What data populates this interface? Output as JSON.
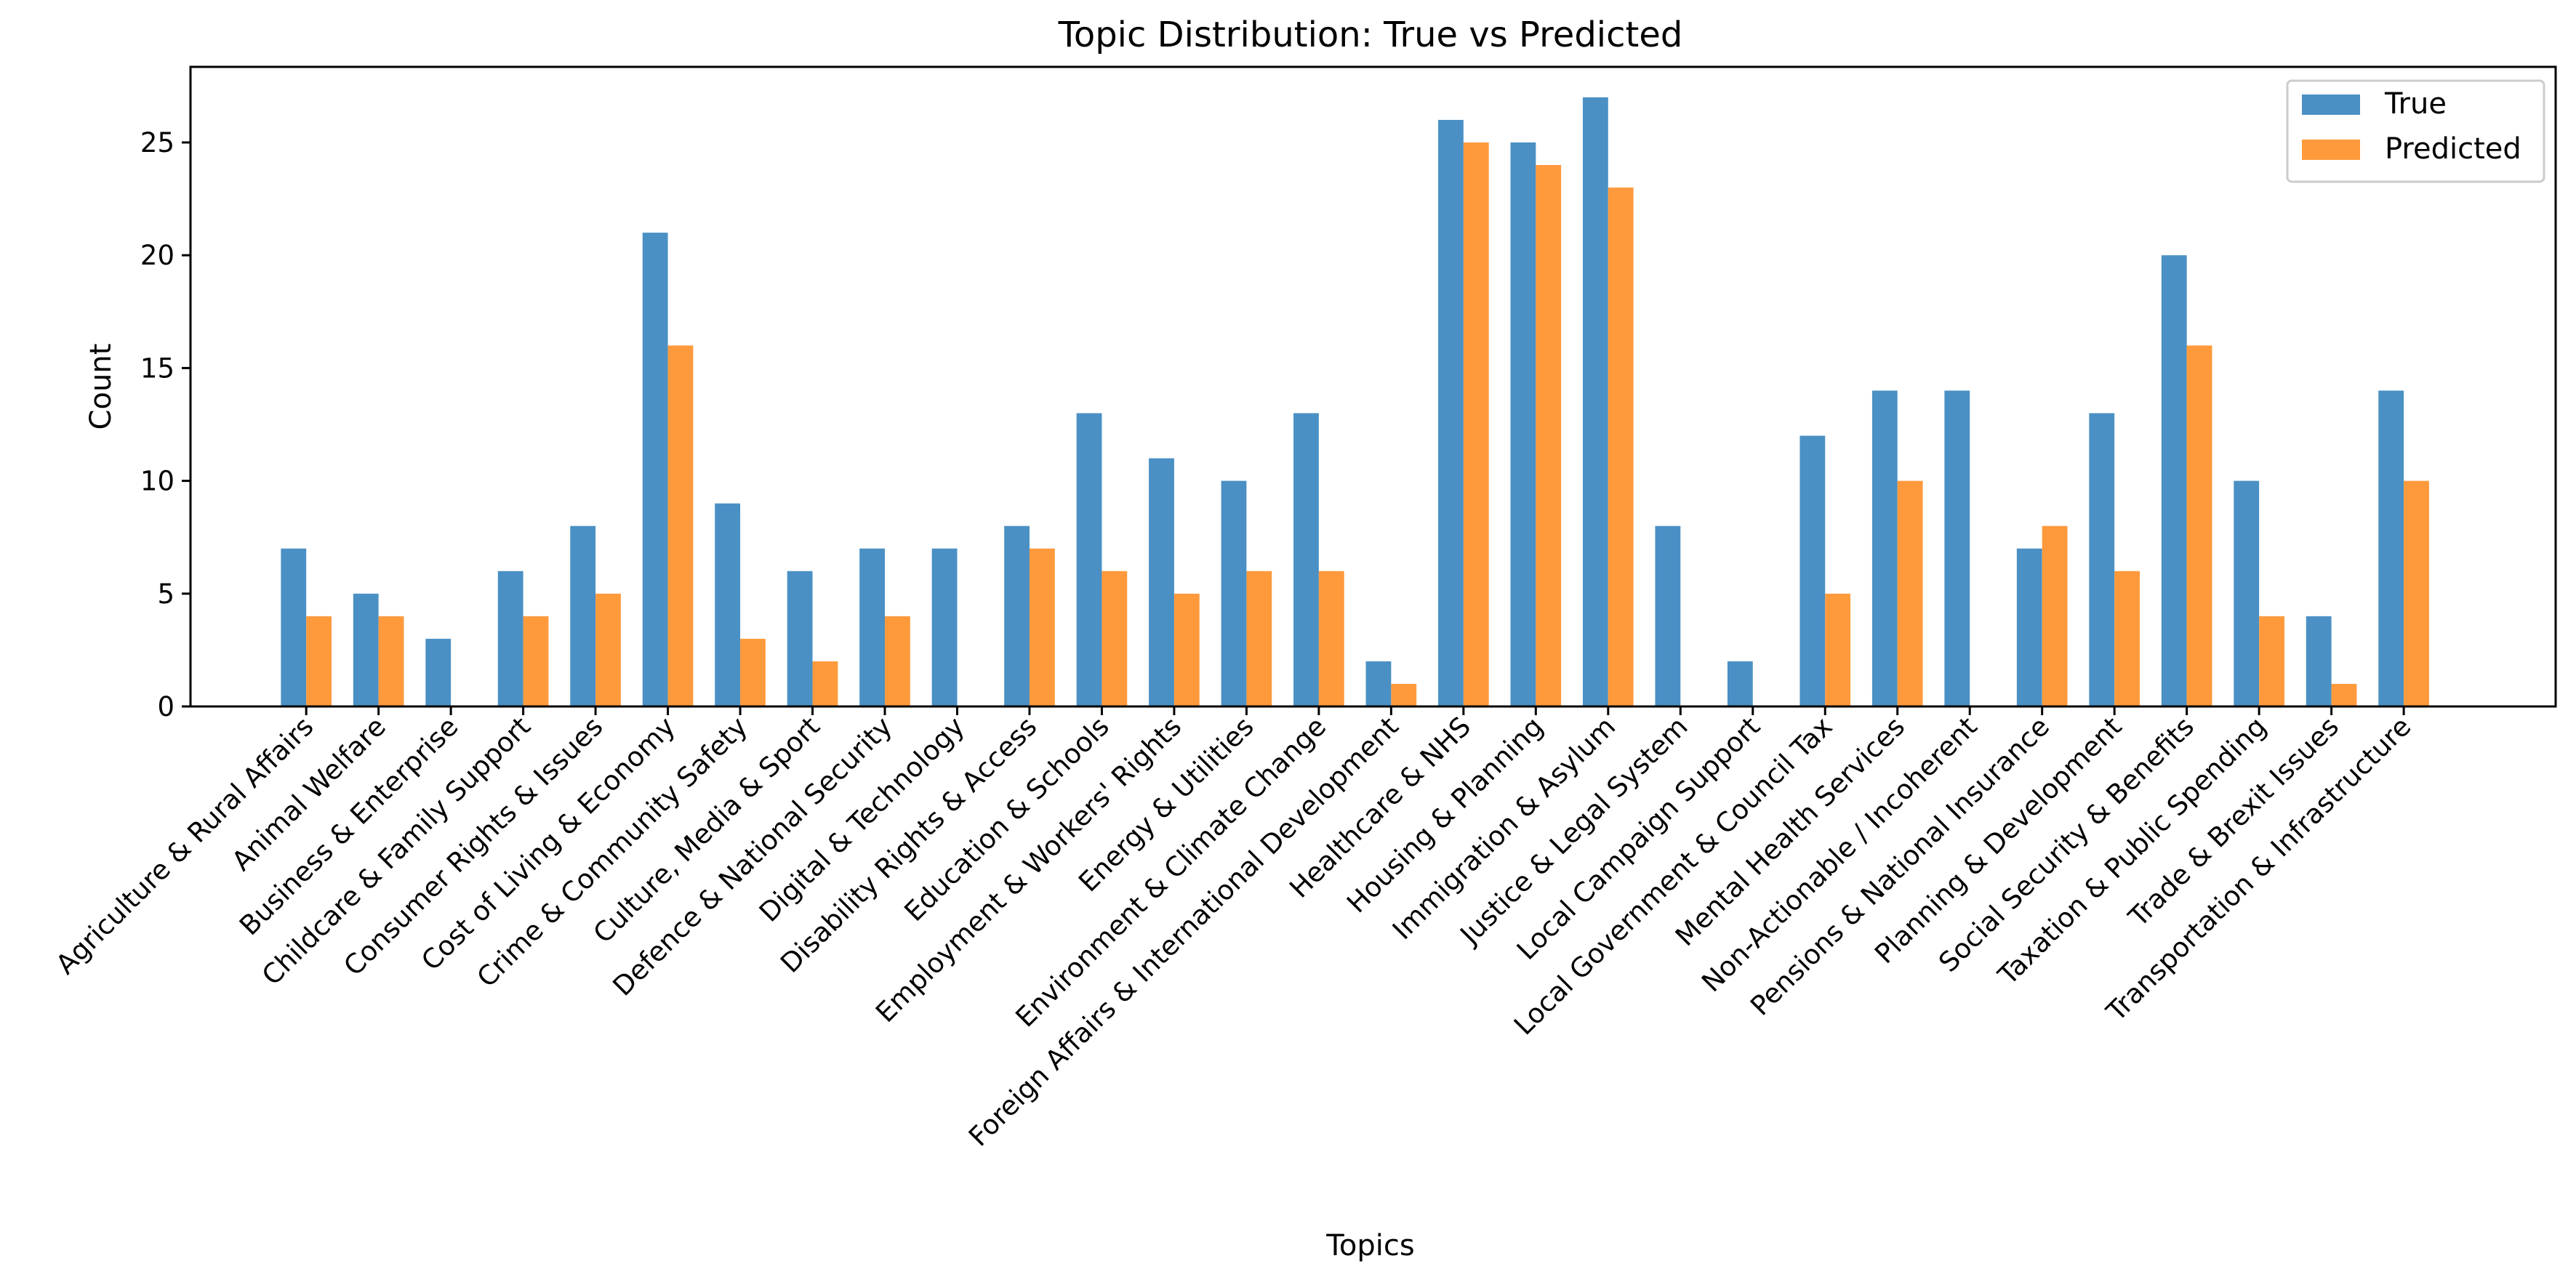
{
  "chart_data": {
    "type": "bar",
    "title": "Topic Distribution: True vs Predicted",
    "xlabel": "Topics",
    "ylabel": "Count",
    "ylim": [
      0,
      28.35
    ],
    "yticks": [
      0,
      5,
      10,
      15,
      20,
      25
    ],
    "grid": false,
    "legend_position": "top-right",
    "colors": {
      "True": "#4a90c4",
      "Predicted": "#ff9a3c"
    },
    "categories": [
      "Agriculture & Rural Affairs",
      "Animal Welfare",
      "Business & Enterprise",
      "Childcare & Family Support",
      "Consumer Rights & Issues",
      "Cost of Living & Economy",
      "Crime & Community Safety",
      "Culture, Media & Sport",
      "Defence & National Security",
      "Digital & Technology",
      "Disability Rights & Access",
      "Education & Schools",
      "Employment & Workers' Rights",
      "Energy & Utilities",
      "Environment & Climate Change",
      "Foreign Affairs & International Development",
      "Healthcare & NHS",
      "Housing & Planning",
      "Immigration & Asylum",
      "Justice & Legal System",
      "Local Campaign Support",
      "Local Government & Council Tax",
      "Mental Health Services",
      "Non-Actionable / Incoherent",
      "Pensions & National Insurance",
      "Planning & Development",
      "Social Security & Benefits",
      "Taxation & Public Spending",
      "Trade & Brexit Issues",
      "Transportation & Infrastructure"
    ],
    "series": [
      {
        "name": "True",
        "values": [
          7,
          5,
          3,
          6,
          8,
          21,
          9,
          6,
          7,
          7,
          8,
          13,
          11,
          10,
          13,
          2,
          26,
          25,
          27,
          8,
          2,
          12,
          14,
          14,
          7,
          13,
          20,
          10,
          4,
          14
        ]
      },
      {
        "name": "Predicted",
        "values": [
          4,
          4,
          0,
          4,
          5,
          16,
          3,
          2,
          4,
          0,
          7,
          6,
          5,
          6,
          6,
          1,
          25,
          24,
          23,
          0,
          0,
          5,
          10,
          0,
          8,
          6,
          16,
          4,
          1,
          10
        ]
      }
    ]
  }
}
